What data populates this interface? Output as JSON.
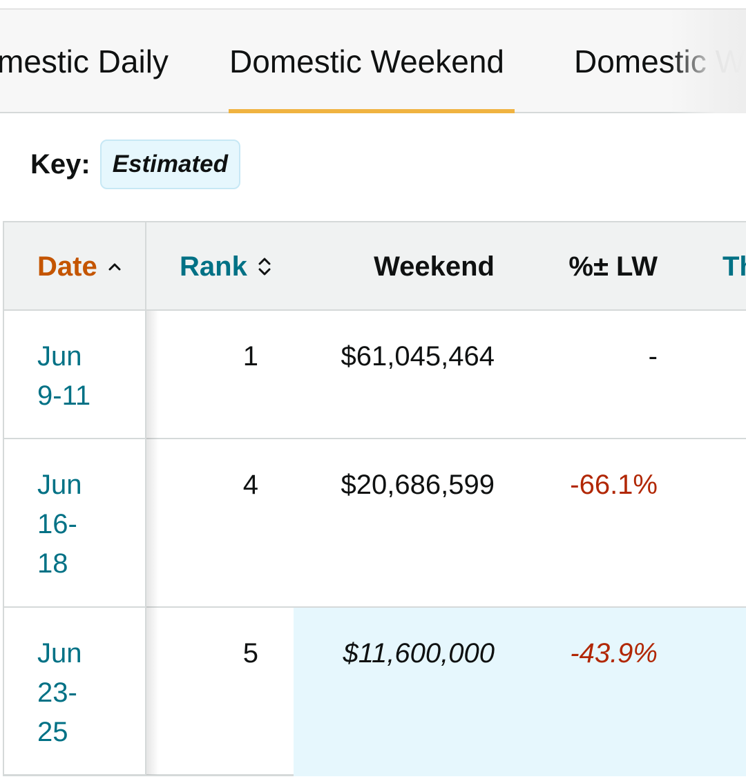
{
  "tabs": [
    {
      "label": "Domestic Daily",
      "visible_label": "mestic Daily",
      "active": false
    },
    {
      "label": "Domestic Weekend",
      "visible_label": "Domestic Weekend",
      "active": true
    },
    {
      "label": "Domestic W",
      "visible_label": "Domestic W",
      "active": false
    }
  ],
  "key": {
    "label": "Key:",
    "badge": "Estimated"
  },
  "table": {
    "headers": {
      "date": "Date",
      "rank": "Rank",
      "weekend": "Weekend",
      "lw": "%± LW",
      "extra": "Th"
    },
    "rows": [
      {
        "date_line1": "Jun",
        "date_line2": "9-11",
        "date_line3": "",
        "rank": "1",
        "weekend": "$61,045,464",
        "lw": "-",
        "estimated": false
      },
      {
        "date_line1": "Jun",
        "date_line2": "16-",
        "date_line3": "18",
        "rank": "4",
        "weekend": "$20,686,599",
        "lw": "-66.1%",
        "estimated": false
      },
      {
        "date_line1": "Jun",
        "date_line2": "23-",
        "date_line3": "25",
        "rank": "5",
        "weekend": "$11,600,000",
        "lw": "-43.9%",
        "estimated": true
      }
    ]
  },
  "colors": {
    "tab_underline": "#f0b341",
    "link": "#007185",
    "sorted_header": "#c45500",
    "negative": "#b12704",
    "estimated_bg": "#e6f7fd"
  },
  "icons": {
    "sort_active": "chevron-up-icon",
    "sort_inactive": "sort-updown-icon"
  }
}
